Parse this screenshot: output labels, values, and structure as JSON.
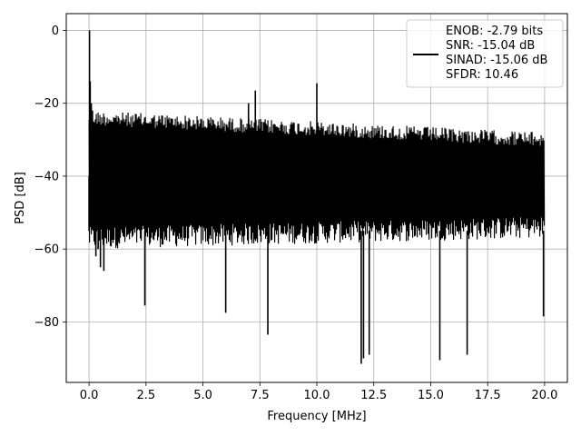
{
  "chart_data": {
    "type": "line",
    "xlabel": "Frequency [MHz]",
    "ylabel": "PSD [dB]",
    "xlim": [
      -1.0,
      21.0
    ],
    "ylim": [
      -96.6,
      4.6
    ],
    "grid": true,
    "xticks": [
      0.0,
      2.5,
      5.0,
      7.5,
      10.0,
      12.5,
      15.0,
      17.5,
      20.0
    ],
    "xtick_labels": [
      "0.0",
      "2.5",
      "5.0",
      "7.5",
      "10.0",
      "12.5",
      "15.0",
      "17.5",
      "20.0"
    ],
    "yticks": [
      0,
      -20,
      -40,
      -60,
      -80
    ],
    "ytick_labels": [
      "0",
      "−20",
      "−40",
      "−60",
      "−80"
    ],
    "series_color": "#000000",
    "noise_floor_band": {
      "x_range": [
        0.0,
        20.0
      ],
      "upper_db": [
        -22,
        -28
      ],
      "lower_db": [
        -58,
        -55
      ]
    },
    "series": [
      {
        "x": [
          0.0,
          0.02,
          0.05,
          0.1,
          0.15,
          0.2,
          0.25,
          0.3,
          0.4,
          0.5,
          0.65,
          2.45,
          6.0,
          7.0,
          7.3,
          7.85,
          10.0,
          11.95,
          12.05,
          12.3,
          15.4,
          16.6,
          19.95
        ],
        "values": [
          -40,
          0,
          -14,
          -20,
          -22,
          -28,
          -55,
          -62,
          -60,
          -65,
          -66,
          -75.5,
          -77.5,
          -20,
          -16.5,
          -83.5,
          -14.5,
          -91.5,
          -90,
          -89,
          -90.5,
          -89,
          -78.5
        ]
      }
    ],
    "legend": {
      "position": "top-right",
      "entries": [
        "ENOB: -2.79 bits",
        "SNR: -15.04 dB",
        "SINAD: -15.06 dB",
        "SFDR: 10.46"
      ]
    }
  }
}
